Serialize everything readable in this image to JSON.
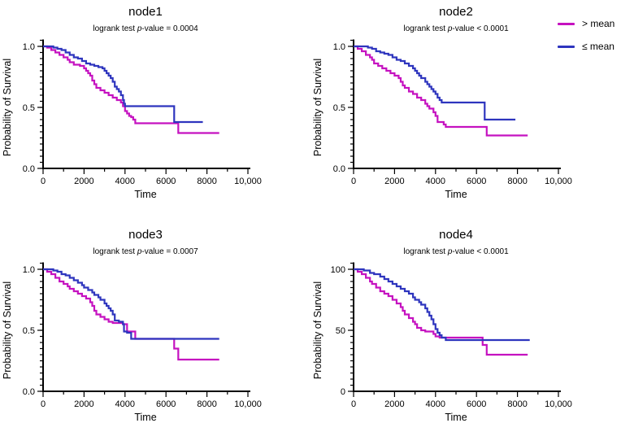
{
  "legend": {
    "position": "top-right",
    "items": [
      {
        "id": "gt-mean",
        "label": "> mean",
        "color": "#C512C0"
      },
      {
        "id": "le-mean",
        "label": "≤ mean",
        "color": "#2E35BE"
      }
    ]
  },
  "chart_data": [
    {
      "type": "line",
      "style": "kaplan-meier-step",
      "title": "node1",
      "subtitle_pre": "logrank test ",
      "subtitle_italic": "p",
      "subtitle_post": "-value = 0.0004",
      "xlabel": "Time",
      "ylabel": "Probability of Survival",
      "xlim": [
        0,
        10000
      ],
      "ylim": [
        0,
        1
      ],
      "xticks": [
        0,
        2000,
        4000,
        6000,
        8000,
        10000
      ],
      "xtick_labels": [
        "0",
        "2000",
        "4000",
        "6000",
        "8000",
        "10,000"
      ],
      "x_minor": 1000,
      "yticks": [
        0,
        0.5,
        1.0
      ],
      "ytick_labels": [
        "0.0",
        "0.5",
        "1.0"
      ],
      "y_minor": 0.05,
      "grid": false,
      "series": [
        {
          "id": "gt-mean",
          "name": "> mean",
          "color": "#C512C0",
          "points": [
            [
              0,
              1.0
            ],
            [
              200,
              0.99
            ],
            [
              400,
              0.97
            ],
            [
              600,
              0.95
            ],
            [
              800,
              0.93
            ],
            [
              1000,
              0.91
            ],
            [
              1200,
              0.89
            ],
            [
              1300,
              0.87
            ],
            [
              1500,
              0.85
            ],
            [
              1800,
              0.84
            ],
            [
              2000,
              0.82
            ],
            [
              2100,
              0.8
            ],
            [
              2200,
              0.78
            ],
            [
              2300,
              0.76
            ],
            [
              2400,
              0.72
            ],
            [
              2500,
              0.69
            ],
            [
              2600,
              0.66
            ],
            [
              2800,
              0.64
            ],
            [
              3000,
              0.62
            ],
            [
              3200,
              0.6
            ],
            [
              3400,
              0.58
            ],
            [
              3600,
              0.56
            ],
            [
              3800,
              0.54
            ],
            [
              3900,
              0.51
            ],
            [
              4000,
              0.47
            ],
            [
              4100,
              0.45
            ],
            [
              4200,
              0.43
            ],
            [
              4300,
              0.42
            ],
            [
              4400,
              0.4
            ],
            [
              4500,
              0.37
            ],
            [
              6600,
              0.29
            ],
            [
              8600,
              0.29
            ]
          ]
        },
        {
          "id": "le-mean",
          "name": "≤ mean",
          "color": "#2E35BE",
          "points": [
            [
              0,
              1.0
            ],
            [
              300,
              1.0
            ],
            [
              500,
              0.99
            ],
            [
              700,
              0.98
            ],
            [
              900,
              0.97
            ],
            [
              1100,
              0.95
            ],
            [
              1300,
              0.93
            ],
            [
              1500,
              0.91
            ],
            [
              1700,
              0.9
            ],
            [
              1900,
              0.88
            ],
            [
              2100,
              0.86
            ],
            [
              2300,
              0.85
            ],
            [
              2500,
              0.84
            ],
            [
              2700,
              0.83
            ],
            [
              2900,
              0.82
            ],
            [
              3000,
              0.8
            ],
            [
              3100,
              0.78
            ],
            [
              3200,
              0.76
            ],
            [
              3300,
              0.74
            ],
            [
              3400,
              0.71
            ],
            [
              3500,
              0.67
            ],
            [
              3600,
              0.65
            ],
            [
              3700,
              0.63
            ],
            [
              3800,
              0.6
            ],
            [
              3900,
              0.56
            ],
            [
              3950,
              0.53
            ],
            [
              4000,
              0.51
            ],
            [
              6400,
              0.38
            ],
            [
              7800,
              0.38
            ]
          ]
        }
      ]
    },
    {
      "type": "line",
      "style": "kaplan-meier-step",
      "title": "node2",
      "subtitle_pre": "logrank test ",
      "subtitle_italic": "p",
      "subtitle_post": "-value < 0.0001",
      "xlabel": "Time",
      "ylabel": "Probability of Survival",
      "xlim": [
        0,
        10000
      ],
      "ylim": [
        0,
        1
      ],
      "xticks": [
        0,
        2000,
        4000,
        6000,
        8000,
        10000
      ],
      "xtick_labels": [
        "0",
        "2000",
        "4000",
        "6000",
        "8000",
        "10,000"
      ],
      "x_minor": 1000,
      "yticks": [
        0,
        0.5,
        1.0
      ],
      "ytick_labels": [
        "0.0",
        "0.5",
        "1.0"
      ],
      "y_minor": 0.05,
      "grid": false,
      "series": [
        {
          "id": "gt-mean",
          "name": "> mean",
          "color": "#C512C0",
          "points": [
            [
              0,
              1.0
            ],
            [
              200,
              0.98
            ],
            [
              400,
              0.96
            ],
            [
              600,
              0.93
            ],
            [
              800,
              0.91
            ],
            [
              900,
              0.89
            ],
            [
              1000,
              0.86
            ],
            [
              1200,
              0.84
            ],
            [
              1400,
              0.82
            ],
            [
              1600,
              0.8
            ],
            [
              1800,
              0.78
            ],
            [
              2000,
              0.76
            ],
            [
              2200,
              0.74
            ],
            [
              2300,
              0.71
            ],
            [
              2400,
              0.68
            ],
            [
              2500,
              0.66
            ],
            [
              2700,
              0.63
            ],
            [
              2900,
              0.61
            ],
            [
              3100,
              0.58
            ],
            [
              3300,
              0.56
            ],
            [
              3500,
              0.53
            ],
            [
              3600,
              0.51
            ],
            [
              3700,
              0.49
            ],
            [
              3900,
              0.46
            ],
            [
              4000,
              0.43
            ],
            [
              4100,
              0.38
            ],
            [
              4400,
              0.36
            ],
            [
              4500,
              0.34
            ],
            [
              6500,
              0.27
            ],
            [
              8500,
              0.27
            ]
          ]
        },
        {
          "id": "le-mean",
          "name": "≤ mean",
          "color": "#2E35BE",
          "points": [
            [
              0,
              1.0
            ],
            [
              700,
              0.99
            ],
            [
              900,
              0.98
            ],
            [
              1100,
              0.96
            ],
            [
              1300,
              0.95
            ],
            [
              1500,
              0.94
            ],
            [
              1700,
              0.93
            ],
            [
              1900,
              0.91
            ],
            [
              2100,
              0.89
            ],
            [
              2300,
              0.88
            ],
            [
              2500,
              0.86
            ],
            [
              2700,
              0.84
            ],
            [
              2900,
              0.82
            ],
            [
              3000,
              0.8
            ],
            [
              3100,
              0.78
            ],
            [
              3200,
              0.76
            ],
            [
              3300,
              0.74
            ],
            [
              3500,
              0.71
            ],
            [
              3600,
              0.69
            ],
            [
              3700,
              0.67
            ],
            [
              3800,
              0.65
            ],
            [
              3900,
              0.63
            ],
            [
              4000,
              0.61
            ],
            [
              4100,
              0.58
            ],
            [
              4200,
              0.56
            ],
            [
              4300,
              0.54
            ],
            [
              6400,
              0.4
            ],
            [
              7900,
              0.4
            ]
          ]
        }
      ]
    },
    {
      "type": "line",
      "style": "kaplan-meier-step",
      "title": "node3",
      "subtitle_pre": "logrank test ",
      "subtitle_italic": "p",
      "subtitle_post": "-value = 0.0007",
      "xlabel": "Time",
      "ylabel": "Probability of Survival",
      "xlim": [
        0,
        10000
      ],
      "ylim": [
        0,
        1
      ],
      "xticks": [
        0,
        2000,
        4000,
        6000,
        8000,
        10000
      ],
      "xtick_labels": [
        "0",
        "2000",
        "4000",
        "6000",
        "8000",
        "10,000"
      ],
      "x_minor": 1000,
      "yticks": [
        0,
        0.5,
        1.0
      ],
      "ytick_labels": [
        "0.0",
        "0.5",
        "1.0"
      ],
      "y_minor": 0.05,
      "grid": false,
      "series": [
        {
          "id": "gt-mean",
          "name": "> mean",
          "color": "#C512C0",
          "points": [
            [
              0,
              1.0
            ],
            [
              200,
              0.98
            ],
            [
              400,
              0.96
            ],
            [
              600,
              0.93
            ],
            [
              800,
              0.9
            ],
            [
              1000,
              0.88
            ],
            [
              1200,
              0.86
            ],
            [
              1300,
              0.84
            ],
            [
              1500,
              0.82
            ],
            [
              1700,
              0.8
            ],
            [
              1900,
              0.78
            ],
            [
              2100,
              0.76
            ],
            [
              2300,
              0.73
            ],
            [
              2400,
              0.7
            ],
            [
              2500,
              0.66
            ],
            [
              2600,
              0.63
            ],
            [
              2800,
              0.61
            ],
            [
              3000,
              0.59
            ],
            [
              3200,
              0.57
            ],
            [
              3400,
              0.56
            ],
            [
              3900,
              0.55
            ],
            [
              4100,
              0.49
            ],
            [
              4500,
              0.43
            ],
            [
              6400,
              0.35
            ],
            [
              6600,
              0.26
            ],
            [
              8600,
              0.26
            ]
          ]
        },
        {
          "id": "le-mean",
          "name": "≤ mean",
          "color": "#2E35BE",
          "points": [
            [
              0,
              1.0
            ],
            [
              500,
              0.99
            ],
            [
              700,
              0.98
            ],
            [
              900,
              0.96
            ],
            [
              1100,
              0.95
            ],
            [
              1300,
              0.93
            ],
            [
              1500,
              0.91
            ],
            [
              1700,
              0.89
            ],
            [
              1900,
              0.87
            ],
            [
              2000,
              0.85
            ],
            [
              2200,
              0.83
            ],
            [
              2400,
              0.81
            ],
            [
              2500,
              0.79
            ],
            [
              2700,
              0.77
            ],
            [
              2800,
              0.75
            ],
            [
              3000,
              0.72
            ],
            [
              3100,
              0.7
            ],
            [
              3200,
              0.68
            ],
            [
              3300,
              0.66
            ],
            [
              3400,
              0.63
            ],
            [
              3500,
              0.58
            ],
            [
              3700,
              0.57
            ],
            [
              3900,
              0.55
            ],
            [
              3950,
              0.49
            ],
            [
              4100,
              0.48
            ],
            [
              4300,
              0.43
            ],
            [
              8600,
              0.43
            ]
          ]
        }
      ]
    },
    {
      "type": "line",
      "style": "kaplan-meier-step",
      "title": "node4",
      "subtitle_pre": "logrank test ",
      "subtitle_italic": "p",
      "subtitle_post": "-value < 0.0001",
      "xlabel": "Time",
      "ylabel": "Probability of Survival",
      "xlim": [
        0,
        10000
      ],
      "ylim": [
        0,
        100
      ],
      "xticks": [
        0,
        2000,
        4000,
        6000,
        8000,
        10000
      ],
      "xtick_labels": [
        "0",
        "2000",
        "4000",
        "6000",
        "8000",
        "10,000"
      ],
      "x_minor": 1000,
      "yticks": [
        0,
        50,
        100
      ],
      "ytick_labels": [
        "0",
        "50",
        "100"
      ],
      "y_minor": 5,
      "grid": false,
      "series": [
        {
          "id": "gt-mean",
          "name": "> mean",
          "color": "#C512C0",
          "points": [
            [
              0,
              100
            ],
            [
              200,
              98
            ],
            [
              400,
              96
            ],
            [
              600,
              93
            ],
            [
              800,
              90
            ],
            [
              900,
              88
            ],
            [
              1100,
              85
            ],
            [
              1300,
              82
            ],
            [
              1500,
              80
            ],
            [
              1700,
              78
            ],
            [
              1900,
              75
            ],
            [
              2100,
              72
            ],
            [
              2300,
              69
            ],
            [
              2400,
              66
            ],
            [
              2500,
              63
            ],
            [
              2700,
              60
            ],
            [
              2900,
              57
            ],
            [
              3000,
              55
            ],
            [
              3100,
              52
            ],
            [
              3300,
              50
            ],
            [
              3500,
              49
            ],
            [
              3900,
              47
            ],
            [
              4000,
              45
            ],
            [
              4200,
              44
            ],
            [
              6300,
              38
            ],
            [
              6500,
              30
            ],
            [
              8500,
              30
            ]
          ]
        },
        {
          "id": "le-mean",
          "name": "≤ mean",
          "color": "#2E35BE",
          "points": [
            [
              0,
              100
            ],
            [
              500,
              99
            ],
            [
              800,
              97
            ],
            [
              1000,
              96
            ],
            [
              1300,
              94
            ],
            [
              1500,
              92
            ],
            [
              1700,
              90
            ],
            [
              1900,
              88
            ],
            [
              2100,
              86
            ],
            [
              2300,
              84
            ],
            [
              2500,
              82
            ],
            [
              2700,
              80
            ],
            [
              2900,
              77
            ],
            [
              3000,
              75
            ],
            [
              3200,
              73
            ],
            [
              3300,
              71
            ],
            [
              3500,
              68
            ],
            [
              3600,
              65
            ],
            [
              3700,
              62
            ],
            [
              3800,
              59
            ],
            [
              3900,
              55
            ],
            [
              4000,
              51
            ],
            [
              4100,
              48
            ],
            [
              4200,
              46
            ],
            [
              4300,
              44
            ],
            [
              4500,
              42
            ],
            [
              8600,
              42
            ]
          ]
        }
      ]
    }
  ]
}
